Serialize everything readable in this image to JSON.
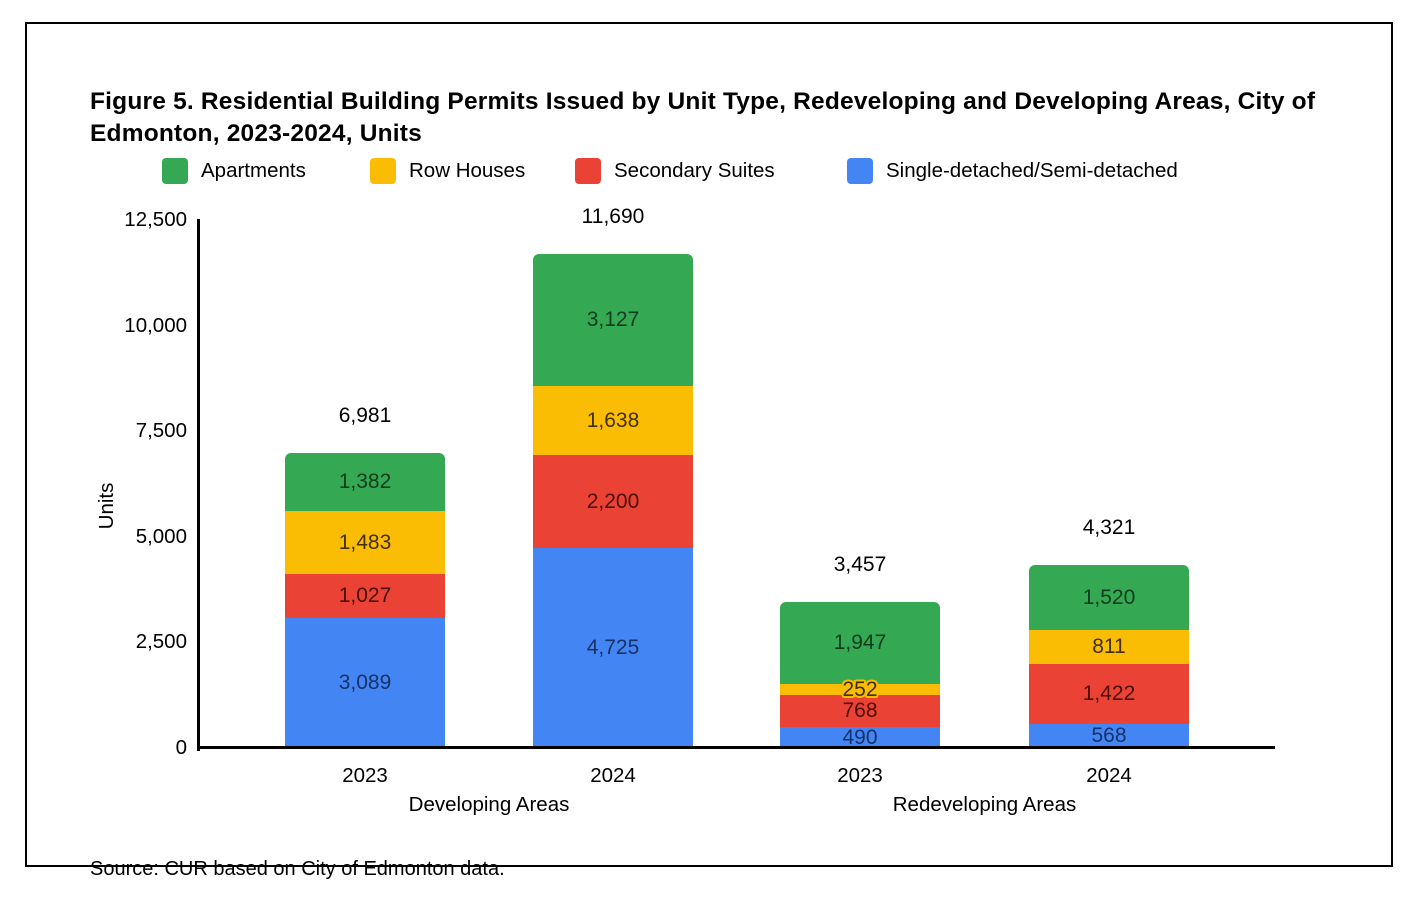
{
  "figure": {
    "title": "Figure 5. Residential Building Permits Issued by Unit Type, Redeveloping and Developing Areas, City of Edmonton, 2023-2024, Units",
    "source": "Source: CUR based on City of Edmonton data."
  },
  "chart_data": {
    "type": "bar",
    "stacked": true,
    "title": "Figure 5. Residential Building Permits Issued by Unit Type, Redeveloping and Developing Areas, City of Edmonton, 2023-2024, Units",
    "ylabel": "Units",
    "xlabel": "",
    "ylim": [
      0,
      12500
    ],
    "yticks": [
      0,
      2500,
      5000,
      7500,
      10000,
      12500
    ],
    "ytick_labels": [
      "0",
      "2,500",
      "5,000",
      "7,500",
      "10,000",
      "12,500"
    ],
    "grid": false,
    "legend_position": "top",
    "legend": [
      {
        "label": "Apartments",
        "color": "#34a853"
      },
      {
        "label": "Row Houses",
        "color": "#fbbc04"
      },
      {
        "label": "Secondary Suites",
        "color": "#ea4335"
      },
      {
        "label": "Single-detached/Semi-detached",
        "color": "#4485f4"
      }
    ],
    "categories": [
      "2023",
      "2024",
      "2023",
      "2024"
    ],
    "group_labels": [
      {
        "label": "Developing Areas",
        "bars": [
          0,
          1
        ]
      },
      {
        "label": "Redeveloping Areas",
        "bars": [
          2,
          3
        ]
      }
    ],
    "series": [
      {
        "name": "Single-detached/Semi-detached",
        "color": "#4485f4",
        "label_color": "#163269",
        "values": [
          3089,
          4725,
          490,
          568
        ]
      },
      {
        "name": "Secondary Suites",
        "color": "#ea4335",
        "label_color": "#4d0e05",
        "values": [
          1027,
          2200,
          768,
          1422
        ]
      },
      {
        "name": "Row Houses",
        "color": "#fbbc04",
        "label_color": "#413001",
        "values": [
          1483,
          1638,
          252,
          811
        ]
      },
      {
        "name": "Apartments",
        "color": "#34a853",
        "label_color": "#123c1d",
        "values": [
          1382,
          3127,
          1947,
          1520
        ]
      }
    ],
    "totals": [
      6981,
      11690,
      3457,
      4321
    ]
  }
}
